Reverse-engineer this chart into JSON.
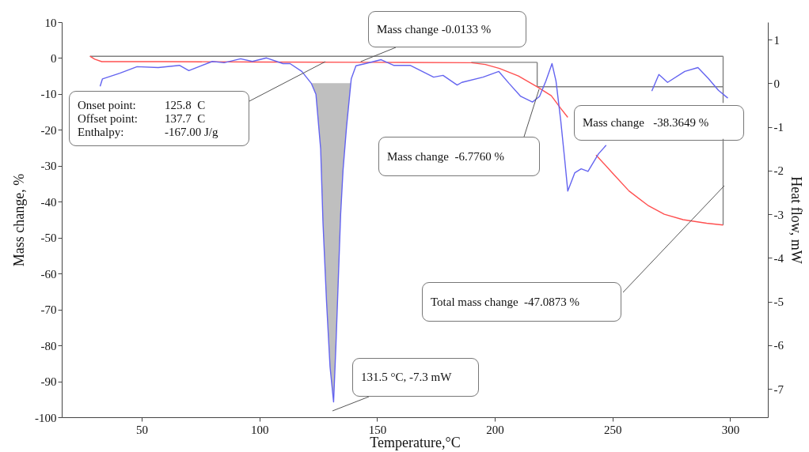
{
  "chart_data": {
    "type": "line",
    "xlabel": "Temperature,°C",
    "ylabel": "Mass change,  %",
    "y2label": "Heat flow, mW",
    "xlim": [
      16,
      316
    ],
    "xticks": [
      50,
      100,
      150,
      200,
      250,
      300
    ],
    "ylim": [
      -100,
      10
    ],
    "yticks": [
      10,
      0,
      -10,
      -20,
      -30,
      -40,
      -50,
      -60,
      -70,
      -80,
      -90,
      -100
    ],
    "y2lim": [
      -7.65,
      1.4
    ],
    "y2ticks": [
      1,
      0,
      -1,
      -2,
      -3,
      -4,
      -5,
      -6,
      -7
    ],
    "grid": false,
    "marker": "none",
    "line_style": "solid",
    "series": [
      {
        "type": "area",
        "axis": "y2",
        "color": "#b4b4b4",
        "x": [
          122,
          124,
          126,
          127,
          128.5,
          130,
          131.5,
          132.5,
          133.5,
          134.5,
          135.5,
          137,
          138.8
        ],
        "values": [
          0,
          -0.25,
          -1.5,
          -3.2,
          -5,
          -6.5,
          -7.3,
          -6,
          -4.5,
          -3,
          -2,
          -1,
          0
        ]
      },
      {
        "type": "line",
        "color": "#808080",
        "x": [
          28,
          297
        ],
        "values": [
          0.5,
          0.5
        ]
      },
      {
        "type": "line",
        "color": "#808080",
        "x": [
          190,
          218
        ],
        "values": [
          -1.2,
          -1.2
        ]
      },
      {
        "type": "line",
        "color": "#808080",
        "x": [
          218,
          297
        ],
        "values": [
          -8.0,
          -8.0
        ]
      },
      {
        "type": "line",
        "color": "#808080",
        "x": [
          218,
          218
        ],
        "values": [
          -1.2,
          -8.0
        ]
      },
      {
        "type": "line",
        "color": "#808080",
        "x": [
          297,
          297
        ],
        "values": [
          0.5,
          -12.5
        ]
      },
      {
        "type": "line",
        "color": "#808080",
        "x": [
          297,
          297
        ],
        "values": [
          -22.5,
          -46.5
        ]
      },
      {
        "type": "line",
        "color": "#ff5050",
        "x": [
          28,
          30,
          33,
          60,
          100,
          150,
          190,
          196,
          202,
          210,
          218,
          224,
          228,
          231,
          237,
          243,
          250,
          257,
          265,
          272,
          280,
          290,
          297
        ],
        "values": [
          0.5,
          -0.3,
          -1.0,
          -1.0,
          -1.1,
          -1.2,
          -1.3,
          -1.8,
          -2.9,
          -5,
          -8.0,
          -10.5,
          -14,
          -16.5,
          null,
          -27,
          -32,
          -37,
          -41,
          -43.5,
          -45,
          -46,
          -46.5
        ]
      },
      {
        "type": "line",
        "axis": "y2",
        "color": "#6464f0",
        "x": [
          32.3,
          33.3,
          40.7,
          48,
          57,
          66,
          70,
          80,
          85,
          92,
          97,
          103,
          110,
          113,
          118,
          122,
          124,
          126,
          127,
          128.5,
          130,
          131.5,
          132.5,
          133.5,
          134.5,
          135.5,
          137,
          139,
          141,
          145,
          151.7,
          157,
          164,
          174,
          178,
          184,
          186,
          195,
          201.7,
          206,
          211,
          216,
          219,
          221.7,
          224.3,
          226,
          228,
          229.7,
          231,
          234,
          236.7,
          239.6,
          244,
          247.3,
          257,
          266.7,
          269.7,
          273.4,
          280.7,
          286.3,
          290.7,
          295,
          299
        ],
        "values": [
          -0.07,
          0.1,
          0.23,
          0.38,
          0.36,
          0.41,
          0.29,
          0.5,
          0.47,
          0.56,
          0.5,
          0.58,
          0.45,
          0.45,
          0.27,
          0,
          -0.25,
          -1.5,
          -3.2,
          -5,
          -6.5,
          -7.3,
          -6,
          -4.5,
          -3,
          -2,
          -1,
          0.1,
          0.4,
          0.45,
          0.54,
          0.41,
          0.41,
          0.14,
          0.18,
          -0.04,
          0.02,
          0.14,
          0.27,
          0,
          -0.3,
          -0.43,
          -0.3,
          0.05,
          0.45,
          0.05,
          -0.85,
          -1.75,
          -2.47,
          -2.05,
          -1.96,
          -2.02,
          -1.62,
          -1.42,
          null,
          -0.18,
          0.2,
          0.02,
          0.27,
          0.36,
          0.11,
          -0.16,
          -0.34
        ]
      }
    ],
    "annotations": [
      {
        "text": "Mass change -0.0133 %",
        "x": 143,
        "y": -1.0
      },
      "Onset point:",
      "125.8  C",
      "Offset point:",
      "137.7  C",
      "Enthalpy:",
      "-167.00 J/g",
      "Mass change  -6.7760 %",
      "Mass change   -38.3649 %",
      "Total mass change  -47.0873 %",
      "131.5 °C, -7.3 mW"
    ]
  }
}
